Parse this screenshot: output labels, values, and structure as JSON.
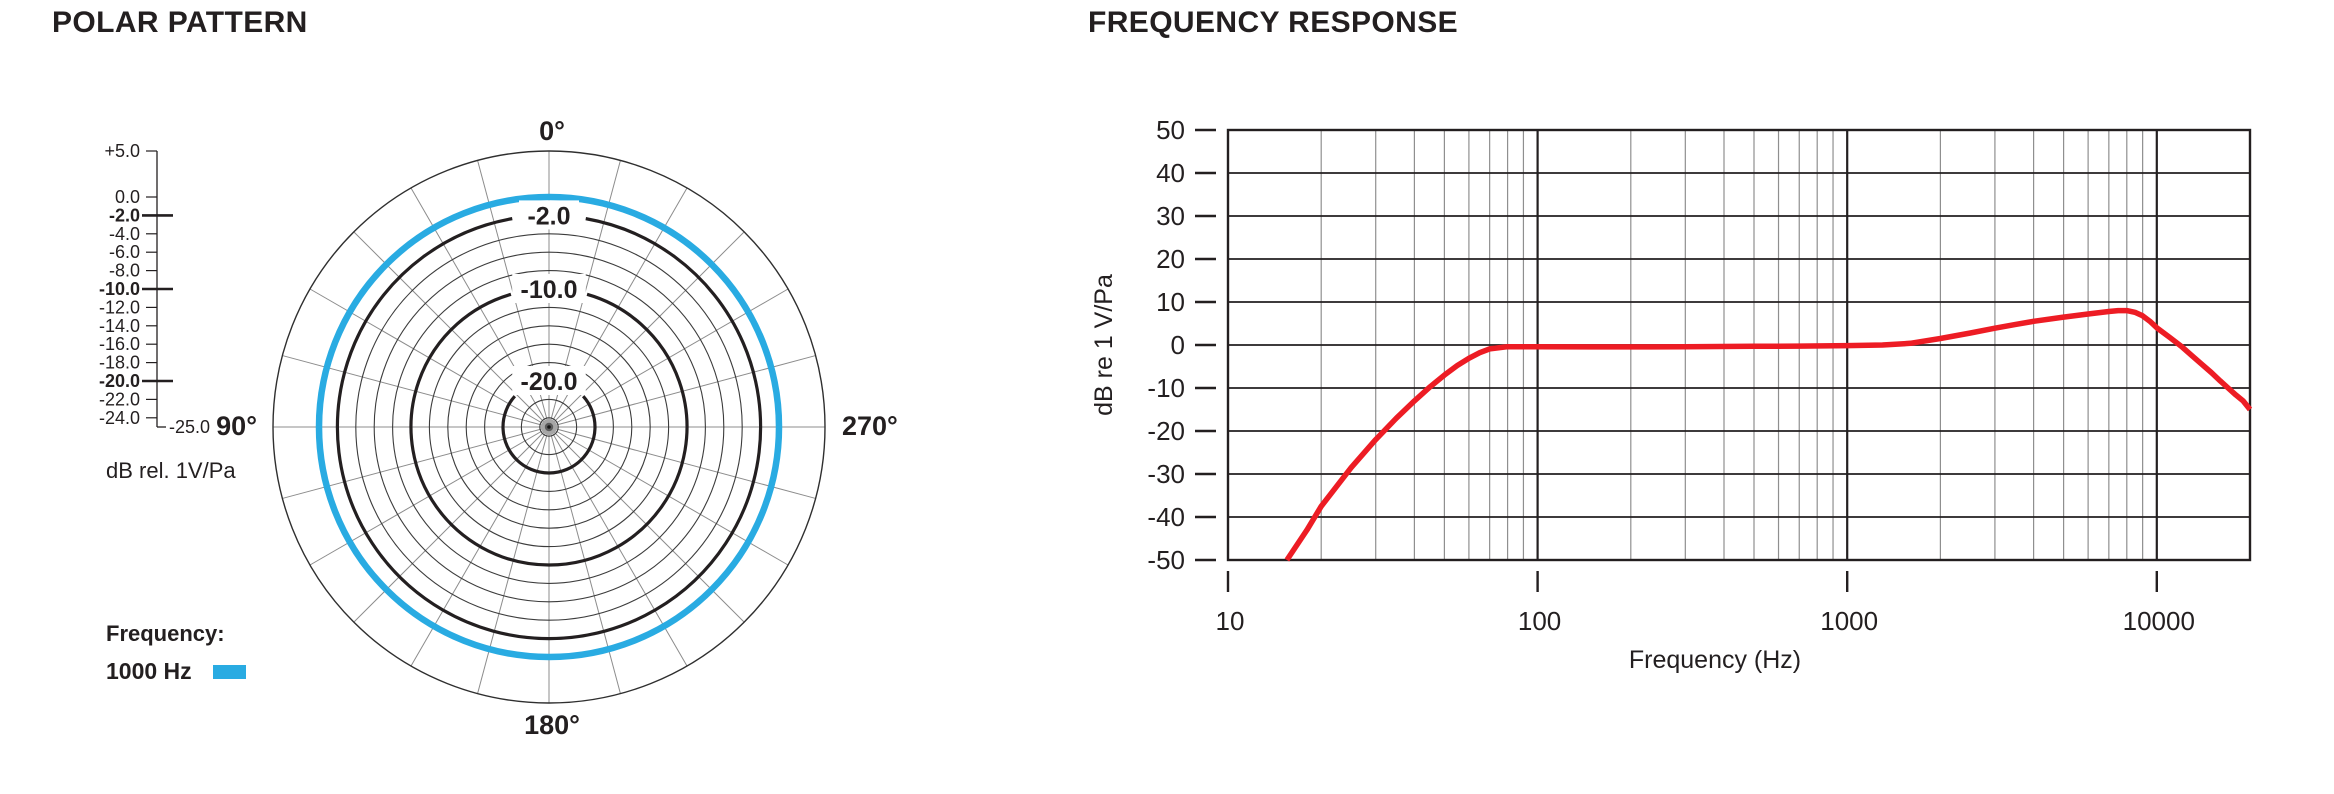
{
  "text_color": "#231f20",
  "chart_data": [
    {
      "type": "polar",
      "title": "POLAR PATTERN",
      "units": "dB rel. 1V/Pa",
      "legend_label": "Frequency:",
      "spoke_step_deg": 15,
      "radial_axis_min_db": -25,
      "radial_axis_max_db": 5,
      "radial_ticks": [
        {
          "db": 5,
          "label": "+5.0"
        },
        {
          "db": 0,
          "label": "0.0"
        },
        {
          "db": -2,
          "label": "-2.0",
          "bold": true
        },
        {
          "db": -4,
          "label": "-4.0"
        },
        {
          "db": -6,
          "label": "-6.0"
        },
        {
          "db": -8,
          "label": "-8.0"
        },
        {
          "db": -10,
          "label": "-10.0",
          "bold": true
        },
        {
          "db": -12,
          "label": "-12.0"
        },
        {
          "db": -14,
          "label": "-14.0"
        },
        {
          "db": -16,
          "label": "-16.0"
        },
        {
          "db": -18,
          "label": "-18.0"
        },
        {
          "db": -20,
          "label": "-20.0",
          "bold": true
        },
        {
          "db": -22,
          "label": "-22.0"
        },
        {
          "db": -24,
          "label": "-24.0"
        }
      ],
      "end_tick": {
        "db": -25,
        "label": "-25.0"
      },
      "rings_db": [
        5,
        0,
        -2,
        -4,
        -6,
        -8,
        -10,
        -12,
        -14,
        -16,
        -18,
        -20,
        -22,
        -24
      ],
      "bold_rings": [
        {
          "db": -2,
          "label": "-2.0",
          "gap_half_deg": 10
        },
        {
          "db": -10,
          "label": "-10.0",
          "gap_half_deg": 16
        },
        {
          "db": -20,
          "label": "-20.0",
          "gap_half_deg": 48
        }
      ],
      "angle_labels": [
        {
          "deg": 0,
          "label": "0°",
          "pos": "top"
        },
        {
          "deg": 90,
          "label": "90°",
          "pos": "left"
        },
        {
          "deg": 180,
          "label": "180°",
          "pos": "bottom"
        },
        {
          "deg": 270,
          "label": "270°",
          "pos": "right"
        }
      ],
      "series": [
        {
          "name": "1000 Hz",
          "color": "#29ABE2",
          "pattern": "omnidirectional",
          "level_db": 0
        }
      ]
    },
    {
      "type": "line",
      "title": "FREQUENCY RESPONSE",
      "xlabel": "Frequency (Hz)",
      "ylabel": "dB re 1 V/Pa",
      "x_scale": "log",
      "xlim": [
        10,
        20000
      ],
      "ylim": [
        -50,
        50
      ],
      "x_ticks": [
        10,
        100,
        1000,
        10000
      ],
      "y_ticks": [
        50,
        40,
        30,
        20,
        10,
        0,
        -10,
        -20,
        -30,
        -40,
        -50
      ],
      "grid": true,
      "series": [
        {
          "name": "frequency response",
          "color": "#ED1C24",
          "points": [
            [
              15.5,
              -50
            ],
            [
              18,
              -43
            ],
            [
              20,
              -37.5
            ],
            [
              25,
              -28.5
            ],
            [
              30,
              -22
            ],
            [
              35,
              -17
            ],
            [
              40,
              -13
            ],
            [
              45,
              -9.7
            ],
            [
              50,
              -7
            ],
            [
              55,
              -4.8
            ],
            [
              60,
              -3.1
            ],
            [
              65,
              -1.8
            ],
            [
              70,
              -0.9
            ],
            [
              80,
              -0.4
            ],
            [
              100,
              -0.4
            ],
            [
              150,
              -0.45
            ],
            [
              200,
              -0.45
            ],
            [
              300,
              -0.4
            ],
            [
              500,
              -0.3
            ],
            [
              700,
              -0.25
            ],
            [
              1000,
              -0.15
            ],
            [
              1300,
              0
            ],
            [
              1600,
              0.4
            ],
            [
              2000,
              1.5
            ],
            [
              2500,
              2.8
            ],
            [
              3000,
              3.9
            ],
            [
              3500,
              4.8
            ],
            [
              4000,
              5.5
            ],
            [
              5000,
              6.5
            ],
            [
              6000,
              7.2
            ],
            [
              7000,
              7.8
            ],
            [
              7500,
              8
            ],
            [
              8000,
              8
            ],
            [
              8500,
              7.6
            ],
            [
              9000,
              6.8
            ],
            [
              9500,
              5.5
            ],
            [
              10000,
              4
            ],
            [
              11000,
              1.8
            ],
            [
              12000,
              -0.3
            ],
            [
              13000,
              -2.5
            ],
            [
              14000,
              -4.5
            ],
            [
              15000,
              -6.4
            ],
            [
              16000,
              -8.3
            ],
            [
              17000,
              -10
            ],
            [
              18000,
              -11.6
            ],
            [
              19000,
              -13
            ],
            [
              20000,
              -15
            ]
          ]
        }
      ]
    }
  ]
}
